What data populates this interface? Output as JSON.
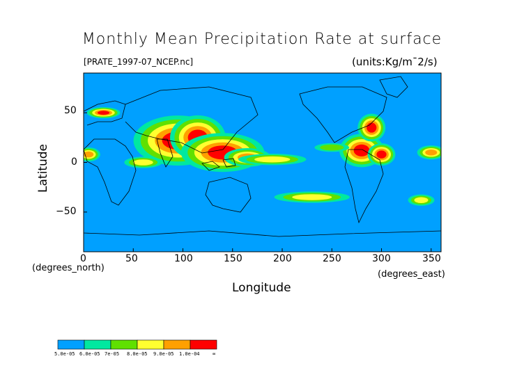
{
  "title": "Monthly Mean Precipitation Rate at surface",
  "file_label": "[PRATE_1997-07_NCEP.nc]",
  "units_label": "(units:Kg/m¯2/s)",
  "xlabel": "Longitude",
  "ylabel": "Latitude",
  "xlabel_sub": "(degrees_east)",
  "ylabel_sub": "(degrees_north)",
  "x_ticks": [
    "0",
    "50",
    "100",
    "150",
    "200",
    "250",
    "300",
    "350"
  ],
  "y_ticks": [
    "50",
    "0",
    "−50"
  ],
  "colors": {
    "ocean_base": "#00a0ff",
    "level1": "#00e8a0",
    "level2": "#60e000",
    "level3": "#ffff30",
    "level4": "#ffa000",
    "level5": "#ff0000"
  },
  "colorbar": {
    "colors": [
      "#00a0ff",
      "#00e8a0",
      "#60e000",
      "#ffff30",
      "#ffa000",
      "#ff0000"
    ],
    "labels": [
      "5.0e-05",
      "6.0e-05",
      "7e-05",
      "8.0e-05",
      "9.0e-05",
      "1.0e-04",
      "∞"
    ]
  },
  "map": {
    "lon_range": [
      0,
      360
    ],
    "lat_range": [
      -90,
      90
    ],
    "blobs": [
      {
        "lon": 95,
        "lat": 22,
        "rx": 16,
        "ry": 9,
        "level": 5
      },
      {
        "lon": 115,
        "lat": 25,
        "rx": 10,
        "ry": 8,
        "level": 5
      },
      {
        "lon": 140,
        "lat": 10,
        "rx": 15,
        "ry": 7,
        "level": 5
      },
      {
        "lon": 165,
        "lat": 5,
        "rx": 10,
        "ry": 4,
        "level": 4
      },
      {
        "lon": 190,
        "lat": 3,
        "rx": 18,
        "ry": 3,
        "level": 3
      },
      {
        "lon": 280,
        "lat": 12,
        "rx": 8,
        "ry": 6,
        "level": 5
      },
      {
        "lon": 290,
        "lat": 35,
        "rx": 5,
        "ry": 5,
        "level": 5
      },
      {
        "lon": 300,
        "lat": 8,
        "rx": 5,
        "ry": 4,
        "level": 5
      },
      {
        "lon": 20,
        "lat": 50,
        "rx": 6,
        "ry": 2,
        "level": 5
      },
      {
        "lon": 230,
        "lat": -35,
        "rx": 20,
        "ry": 3,
        "level": 3
      },
      {
        "lon": 250,
        "lat": 15,
        "rx": 12,
        "ry": 3,
        "level": 2
      },
      {
        "lon": 5,
        "lat": 8,
        "rx": 5,
        "ry": 3,
        "level": 4
      },
      {
        "lon": 60,
        "lat": 0,
        "rx": 10,
        "ry": 3,
        "level": 3
      },
      {
        "lon": 340,
        "lat": -38,
        "rx": 7,
        "ry": 3,
        "level": 3
      },
      {
        "lon": 350,
        "lat": 10,
        "rx": 6,
        "ry": 3,
        "level": 4
      }
    ]
  }
}
